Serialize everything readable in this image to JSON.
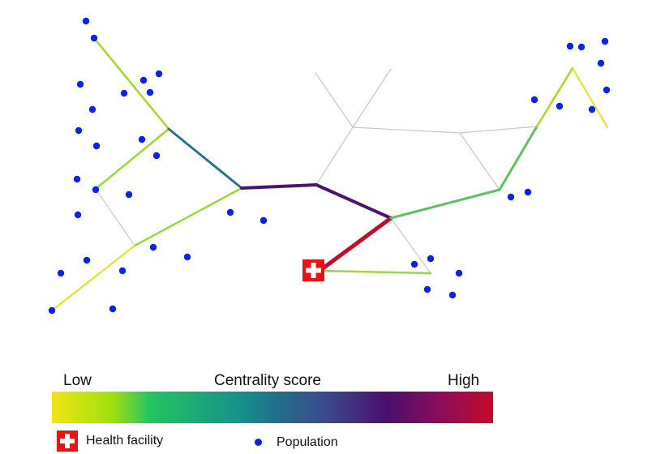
{
  "legend": {
    "low_label": "Low",
    "title": "Centrality score",
    "high_label": "High",
    "facility_label": "Health facility",
    "population_label": "Population"
  },
  "colors": {
    "population": "#0a22ee",
    "facility": "#ee1111",
    "thin_road": "#bdbdbd"
  },
  "icons": [
    "health-facility-icon",
    "population-dot-icon"
  ]
}
